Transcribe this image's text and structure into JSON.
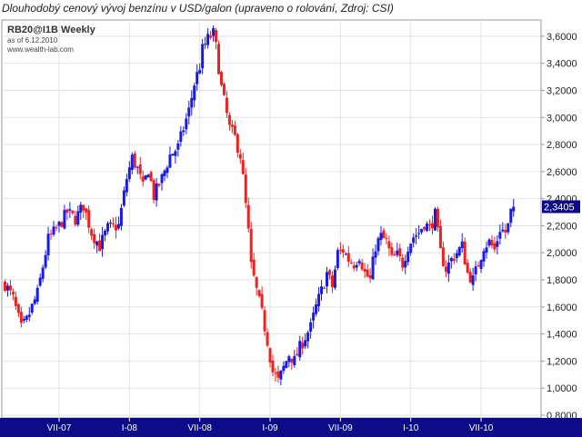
{
  "caption": "Dlouhodobý cenový vývoj benzínu v USD/galon (upraveno o rolování, Zdroj: CSI)",
  "chart_data": {
    "type": "candlestick",
    "symbol": "RB20@I1B Weekly",
    "as_of": "as of 6.12.2010",
    "source": "www.wealth-lab.com",
    "last_value_label": "2,3405",
    "last_value": 2.3405,
    "ylim": [
      0.78,
      3.72
    ],
    "y_ticks": [
      {
        "v": 0.8,
        "label": "0,8000"
      },
      {
        "v": 1.0,
        "label": "1,0000"
      },
      {
        "v": 1.2,
        "label": "1,2000"
      },
      {
        "v": 1.4,
        "label": "1,4000"
      },
      {
        "v": 1.6,
        "label": "1,6000"
      },
      {
        "v": 1.8,
        "label": "1,8000"
      },
      {
        "v": 2.0,
        "label": "2,0000"
      },
      {
        "v": 2.2,
        "label": "2,2000"
      },
      {
        "v": 2.4,
        "label": "2,4000"
      },
      {
        "v": 2.6,
        "label": "2,6000"
      },
      {
        "v": 2.8,
        "label": "2,8000"
      },
      {
        "v": 3.0,
        "label": "3,0000"
      },
      {
        "v": 3.2,
        "label": "3,2000"
      },
      {
        "v": 3.4,
        "label": "3,4000"
      },
      {
        "v": 3.6,
        "label": "3,6000"
      }
    ],
    "x_ticks": [
      {
        "week": 20,
        "label": "VII-07"
      },
      {
        "week": 46,
        "label": "I-08"
      },
      {
        "week": 72,
        "label": "VII-08"
      },
      {
        "week": 98,
        "label": "I-09"
      },
      {
        "week": 124,
        "label": "VII-09"
      },
      {
        "week": 150,
        "label": "I-10"
      },
      {
        "week": 176,
        "label": "VII-10"
      }
    ],
    "week_count": 198,
    "close_path": [
      [
        0,
        1.77
      ],
      [
        3,
        1.66
      ],
      [
        6,
        1.44
      ],
      [
        8,
        1.5
      ],
      [
        12,
        1.7
      ],
      [
        16,
        2.1
      ],
      [
        20,
        2.2
      ],
      [
        23,
        2.3
      ],
      [
        26,
        2.25
      ],
      [
        29,
        2.35
      ],
      [
        32,
        2.15
      ],
      [
        35,
        2.05
      ],
      [
        38,
        2.18
      ],
      [
        42,
        2.2
      ],
      [
        45,
        2.55
      ],
      [
        47,
        2.7
      ],
      [
        49,
        2.62
      ],
      [
        51,
        2.48
      ],
      [
        53,
        2.62
      ],
      [
        55,
        2.42
      ],
      [
        58,
        2.55
      ],
      [
        61,
        2.72
      ],
      [
        64,
        2.78
      ],
      [
        66,
        2.92
      ],
      [
        68,
        3.05
      ],
      [
        70,
        3.25
      ],
      [
        72,
        3.38
      ],
      [
        73,
        3.5
      ],
      [
        75,
        3.58
      ],
      [
        77,
        3.62
      ],
      [
        78,
        3.52
      ],
      [
        80,
        3.22
      ],
      [
        81,
        3.12
      ],
      [
        83,
        2.92
      ],
      [
        85,
        2.85
      ],
      [
        87,
        2.72
      ],
      [
        88,
        2.55
      ],
      [
        89,
        2.35
      ],
      [
        90,
        2.15
      ],
      [
        91,
        1.9
      ],
      [
        93,
        1.72
      ],
      [
        95,
        1.55
      ],
      [
        97,
        1.35
      ],
      [
        99,
        1.12
      ],
      [
        101,
        1.05
      ],
      [
        103,
        1.15
      ],
      [
        105,
        1.25
      ],
      [
        107,
        1.2
      ],
      [
        109,
        1.3
      ],
      [
        111,
        1.38
      ],
      [
        113,
        1.45
      ],
      [
        115,
        1.6
      ],
      [
        117,
        1.72
      ],
      [
        119,
        1.85
      ],
      [
        121,
        1.75
      ],
      [
        123,
        2.0
      ],
      [
        125,
        2.02
      ],
      [
        127,
        1.95
      ],
      [
        129,
        1.92
      ],
      [
        131,
        1.98
      ],
      [
        133,
        1.85
      ],
      [
        135,
        1.8
      ],
      [
        137,
        2.05
      ],
      [
        139,
        2.12
      ],
      [
        141,
        2.08
      ],
      [
        143,
        1.95
      ],
      [
        145,
        1.98
      ],
      [
        147,
        1.92
      ],
      [
        149,
        2.05
      ],
      [
        151,
        2.12
      ],
      [
        153,
        2.15
      ],
      [
        155,
        2.22
      ],
      [
        157,
        2.18
      ],
      [
        159,
        2.28
      ],
      [
        161,
        2.0
      ],
      [
        163,
        1.88
      ],
      [
        165,
        1.95
      ],
      [
        167,
        2.0
      ],
      [
        169,
        2.05
      ],
      [
        171,
        1.85
      ],
      [
        173,
        1.8
      ],
      [
        175,
        1.92
      ],
      [
        177,
        2.05
      ],
      [
        179,
        2.08
      ],
      [
        181,
        2.02
      ],
      [
        183,
        2.18
      ],
      [
        185,
        2.15
      ],
      [
        186,
        2.2
      ],
      [
        187,
        2.3
      ],
      [
        188,
        2.3405
      ]
    ]
  }
}
